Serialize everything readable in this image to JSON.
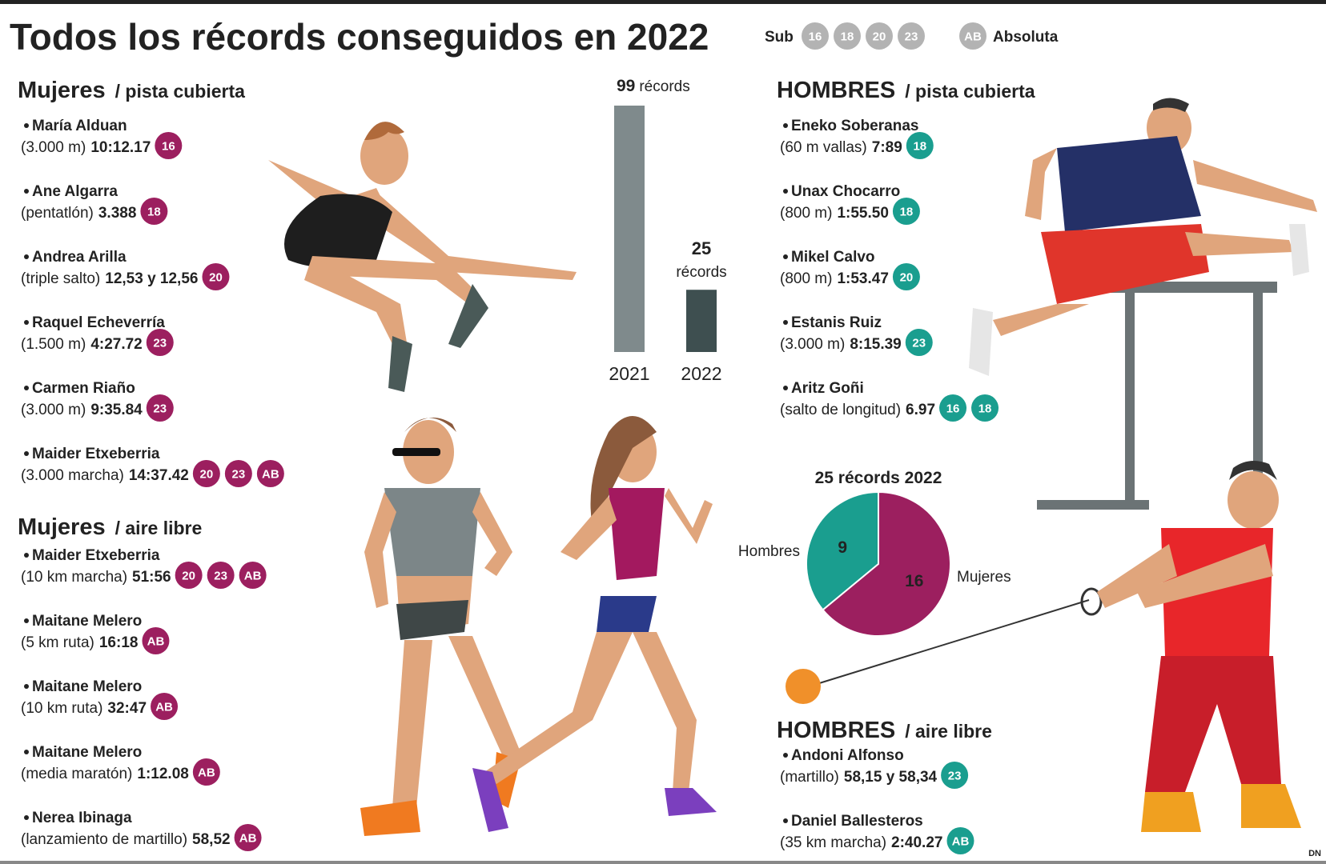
{
  "header": {
    "title": "Todos los récords conseguidos en 2022",
    "legend": {
      "sub": "Sub",
      "badges": [
        "16",
        "18",
        "20",
        "23"
      ],
      "absolute_badge": "AB",
      "absolute": "Absoluta",
      "color": "#b3b3b3"
    }
  },
  "sections": [
    {
      "title": "Mujeres",
      "subtitle": "/ pista cubierta",
      "color": "#9c1f5f",
      "items": [
        {
          "name": "María Alduan",
          "detail": "(3.000 m)",
          "mark": "10:12.17",
          "badges": [
            "16"
          ]
        },
        {
          "name": "Ane Algarra",
          "detail": "(pentatlón)",
          "mark": "3.388",
          "badges": [
            "18"
          ]
        },
        {
          "name": "Andrea Arilla",
          "detail": "(triple salto)",
          "mark": "12,53 y 12,56",
          "badges": [
            "20"
          ]
        },
        {
          "name": "Raquel Echeverría",
          "detail": "(1.500 m)",
          "mark": "4:27.72",
          "badges": [
            "23"
          ]
        },
        {
          "name": "Carmen Riaño",
          "detail": "(3.000 m)",
          "mark": "9:35.84",
          "badges": [
            "23"
          ]
        },
        {
          "name": "Maider Etxeberria",
          "detail": "(3.000 marcha)",
          "mark": "14:37.42",
          "badges": [
            "20",
            "23",
            "AB"
          ]
        }
      ]
    },
    {
      "title": "Mujeres",
      "subtitle": "/ aire libre",
      "color": "#9c1f5f",
      "items": [
        {
          "name": "Maider Etxeberria",
          "detail": "(10 km marcha)",
          "mark": "51:56",
          "badges": [
            "20",
            "23",
            "AB"
          ]
        },
        {
          "name": "Maitane Melero",
          "detail": "(5 km ruta)",
          "mark": "16:18",
          "badges": [
            "AB"
          ]
        },
        {
          "name": "Maitane Melero",
          "detail": "(10 km ruta)",
          "mark": "32:47",
          "badges": [
            "AB"
          ]
        },
        {
          "name": "Maitane Melero",
          "detail": "(media maratón)",
          "mark": "1:12.08",
          "badges": [
            "AB"
          ]
        },
        {
          "name": "Nerea Ibinaga",
          "detail": "(lanzamiento de martillo)",
          "mark": "58,52",
          "badges": [
            "AB"
          ]
        }
      ]
    },
    {
      "title": "HOMBRES",
      "subtitle": "/ pista cubierta",
      "color": "#1a9e8f",
      "items": [
        {
          "name": "Eneko Soberanas",
          "detail": "(60 m vallas)",
          "mark": "7:89",
          "badges": [
            "18"
          ]
        },
        {
          "name": "Unax Chocarro",
          "detail": "(800 m)",
          "mark": "1:55.50",
          "badges": [
            "18"
          ]
        },
        {
          "name": "Mikel Calvo",
          "detail": "(800 m)",
          "mark": "1:53.47",
          "badges": [
            "20"
          ]
        },
        {
          "name": "Estanis Ruiz",
          "detail": "(3.000 m)",
          "mark": "8:15.39",
          "badges": [
            "23"
          ]
        },
        {
          "name": "Aritz Goñi",
          "detail": "(salto de longitud)",
          "mark": "6.97",
          "badges": [
            "16",
            "18"
          ]
        }
      ]
    },
    {
      "title": "HOMBRES",
      "subtitle": "/ aire libre",
      "color": "#1a9e8f",
      "items": [
        {
          "name": "Andoni Alfonso",
          "detail": "(martillo)",
          "mark": "58,15 y 58,34",
          "badges": [
            "23"
          ]
        },
        {
          "name": "Daniel Ballesteros",
          "detail": "(35 km marcha)",
          "mark": "2:40.27",
          "badges": [
            "AB"
          ]
        }
      ]
    }
  ],
  "chart_data": [
    {
      "type": "bar",
      "categories": [
        "2021",
        "2022"
      ],
      "values": [
        99,
        25
      ],
      "unit": "récords",
      "colors": [
        "#7f8a8c",
        "#3e4f50"
      ]
    },
    {
      "type": "pie",
      "title": "25 récords 2022",
      "categories": [
        "Hombres",
        "Mujeres"
      ],
      "values": [
        9,
        16
      ],
      "colors": [
        "#1a9e8f",
        "#9c1f5f"
      ]
    }
  ],
  "footer": {
    "credit": "DN"
  }
}
